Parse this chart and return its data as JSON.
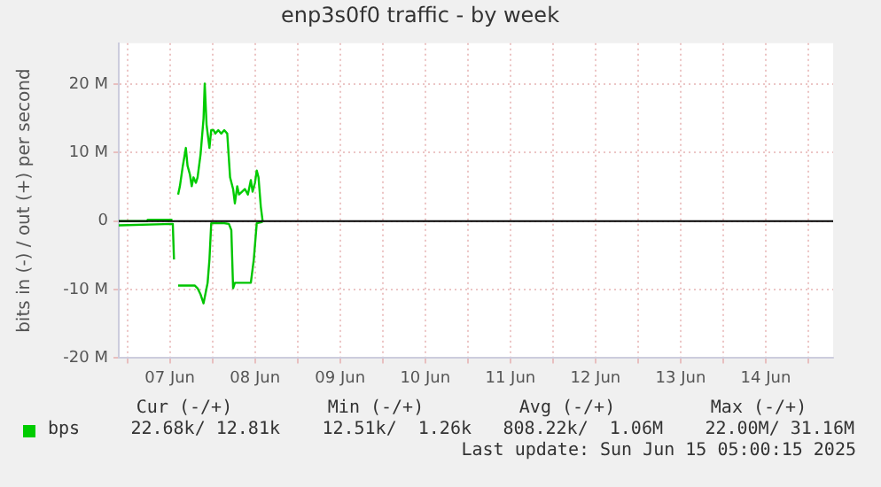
{
  "chart_data": {
    "type": "line",
    "title": "enp3s0f0 traffic - by week",
    "ylabel": "bits in (-) / out (+) per second",
    "xlim": [
      "2025-06-06T21:36",
      "2025-06-15T07:00"
    ],
    "xticks": [
      {
        "value": "2025-06-07",
        "label": null
      },
      {
        "value": "2025-06-07T12:00",
        "label": "07 Jun"
      },
      {
        "value": "2025-06-08",
        "label": null
      },
      {
        "value": "2025-06-08T12:00",
        "label": "08 Jun"
      },
      {
        "value": "2025-06-09",
        "label": null
      },
      {
        "value": "2025-06-09T12:00",
        "label": "09 Jun"
      },
      {
        "value": "2025-06-10",
        "label": null
      },
      {
        "value": "2025-06-10T12:00",
        "label": "10 Jun"
      },
      {
        "value": "2025-06-11",
        "label": null
      },
      {
        "value": "2025-06-11T12:00",
        "label": "11 Jun"
      },
      {
        "value": "2025-06-12",
        "label": null
      },
      {
        "value": "2025-06-12T12:00",
        "label": "12 Jun"
      },
      {
        "value": "2025-06-13",
        "label": null
      },
      {
        "value": "2025-06-13T12:00",
        "label": "13 Jun"
      },
      {
        "value": "2025-06-14",
        "label": null
      },
      {
        "value": "2025-06-14T12:00",
        "label": "14 Jun"
      },
      {
        "value": "2025-06-15",
        "label": null
      }
    ],
    "ylim": [
      -20,
      26
    ],
    "yticks": [
      {
        "value": -20,
        "label": "-20 M"
      },
      {
        "value": -10,
        "label": "-10 M"
      },
      0,
      {
        "value": 10,
        "label": "10 M"
      },
      {
        "value": 20,
        "label": "20 M"
      }
    ],
    "grid": true,
    "legend": "bottom left",
    "marker": "none",
    "line_style": "solid",
    "ref_lines": [
      {
        "axis": "y",
        "value": 0,
        "color": "#000000"
      }
    ],
    "series": [
      {
        "name": "bps",
        "color": "#00cc00",
        "x": [
          "2025-06-06T21:36",
          "2025-06-07T05:31",
          "2025-06-07T05:46",
          "2025-06-07T12:43",
          "2025-06-07T13:12",
          "2025-06-07T14:20",
          "2025-06-07T14:50",
          "2025-06-07T15:40",
          "2025-06-07T16:31",
          "2025-06-07T16:59",
          "2025-06-07T17:40",
          "2025-06-07T18:10",
          "2025-06-07T18:40",
          "2025-06-07T19:21",
          "2025-06-07T19:49",
          "2025-06-07T20:40",
          "2025-06-07T21:30",
          "2025-06-07T21:50",
          "2025-06-07T22:21",
          "2025-06-07T23:10",
          "2025-06-07T23:40",
          "2025-06-08T00:20",
          "2025-06-08T00:50",
          "2025-06-08T01:39",
          "2025-06-08T02:30",
          "2025-06-08T03:20",
          "2025-06-08T04:11",
          "2025-06-08T04:59",
          "2025-06-08T05:50",
          "2025-06-08T06:20",
          "2025-06-08T07:00",
          "2025-06-08T07:30",
          "2025-06-08T08:20",
          "2025-06-08T09:10",
          "2025-06-08T10:00",
          "2025-06-08T10:50",
          "2025-06-08T11:20",
          "2025-06-08T12:00",
          "2025-06-08T12:30",
          "2025-06-08T13:00",
          "2025-06-08T13:39",
          "2025-06-08T14:10"
        ],
        "values": [
          0,
          0,
          0.2,
          0.2,
          null,
          3.9,
          5.1,
          8.1,
          10.7,
          8.1,
          6.8,
          5.1,
          6.4,
          5.6,
          6.4,
          9.8,
          15,
          20.1,
          14.1,
          10.7,
          13.3,
          13.3,
          12.8,
          13.3,
          12.8,
          13.3,
          12.8,
          6.4,
          4.7,
          2.6,
          5.1,
          3.9,
          4.3,
          4.7,
          3.9,
          6,
          4.3,
          5.6,
          7.4,
          6.4,
          2.1,
          0
        ]
      },
      {
        "color": "#00c400",
        "x": [
          "2025-06-06T21:36",
          "2025-06-07T12:50",
          "2025-06-07T13:10",
          "2025-06-07T13:40",
          "2025-06-07T14:20",
          "2025-06-07T19:00",
          "2025-06-07T19:49",
          "2025-06-07T20:40",
          "2025-06-07T21:30",
          "2025-06-07T22:00",
          "2025-06-07T22:39",
          "2025-06-07T23:10",
          "2025-06-07T23:40",
          "2025-06-08T03:20",
          "2025-06-08T04:39",
          "2025-06-08T05:20",
          "2025-06-08T05:50",
          "2025-06-08T06:20",
          "2025-06-08T10:50",
          "2025-06-08T11:40",
          "2025-06-08T12:30",
          "2025-06-08T14:10"
        ],
        "values": [
          -0.6,
          -0.4,
          -5.6,
          null,
          -9.4,
          -9.4,
          -9.8,
          -10.7,
          -12,
          -10.7,
          -9,
          -5.6,
          -0.3,
          -0.3,
          -0.4,
          -1.3,
          -9.8,
          -9,
          -9,
          -5.6,
          -0.3,
          -0.1
        ]
      }
    ],
    "annotations": [
      "Cur (-/+)",
      "Min (-/+)",
      "Avg (-/+)",
      "Max (-/+)",
      "22.68k/ 12.81k",
      "12.51k/  1.26k",
      "808.22k/  1.06M",
      "22.00M/ 31.16M",
      "Last update: Sun Jun 15 05:00:15 2025"
    ]
  }
}
